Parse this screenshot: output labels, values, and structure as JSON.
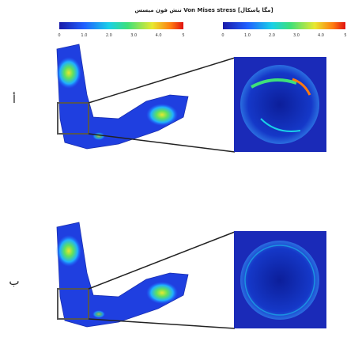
{
  "legend": {
    "title": "تنش فون میسس Von Mises stress [مگا پاسکال]",
    "colorbars": [
      {
        "ticks": [
          "0",
          "1.0",
          "2.0",
          "3.0",
          "4.0",
          "5"
        ]
      },
      {
        "ticks": [
          "0",
          "1.0",
          "2.0",
          "3.0",
          "4.0",
          "5"
        ]
      }
    ]
  },
  "panels": [
    {
      "label": "أ"
    },
    {
      "label": "ب"
    }
  ]
}
